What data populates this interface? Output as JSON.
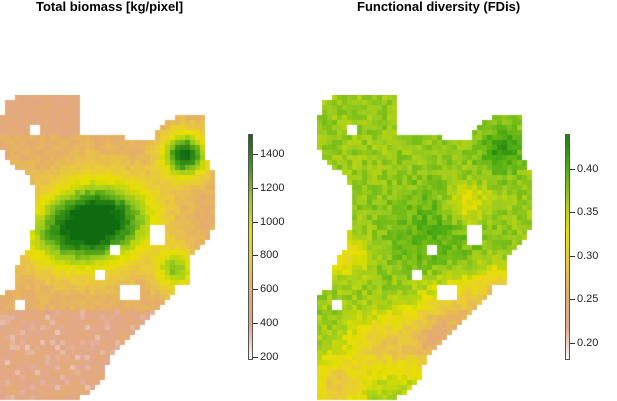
{
  "maps": [
    {
      "id": "biomass",
      "title": "Total biomass [kg/pixel]",
      "legend": {
        "ticks": [
          "1400",
          "1200",
          "1000",
          "800",
          "600",
          "400",
          "200"
        ],
        "range": [
          180,
          1520
        ],
        "colors": [
          "#f7f7f7",
          "#e2a88f",
          "#e5ad6c",
          "#e9c93f",
          "#e7e000",
          "#9ccc1e",
          "#3f9a17",
          "#0f6b10"
        ]
      }
    },
    {
      "id": "fdis",
      "title": "Functional diversity (FDis)",
      "legend": {
        "ticks": [
          "0.40",
          "0.35",
          "0.30",
          "0.25",
          "0.20"
        ],
        "range": [
          0.18,
          0.44
        ],
        "colors": [
          "#f7f7f7",
          "#e2a88f",
          "#e5ad6c",
          "#e9c93f",
          "#e7e000",
          "#9ccc1e",
          "#4aaa12",
          "#1e7d10"
        ]
      }
    }
  ]
}
